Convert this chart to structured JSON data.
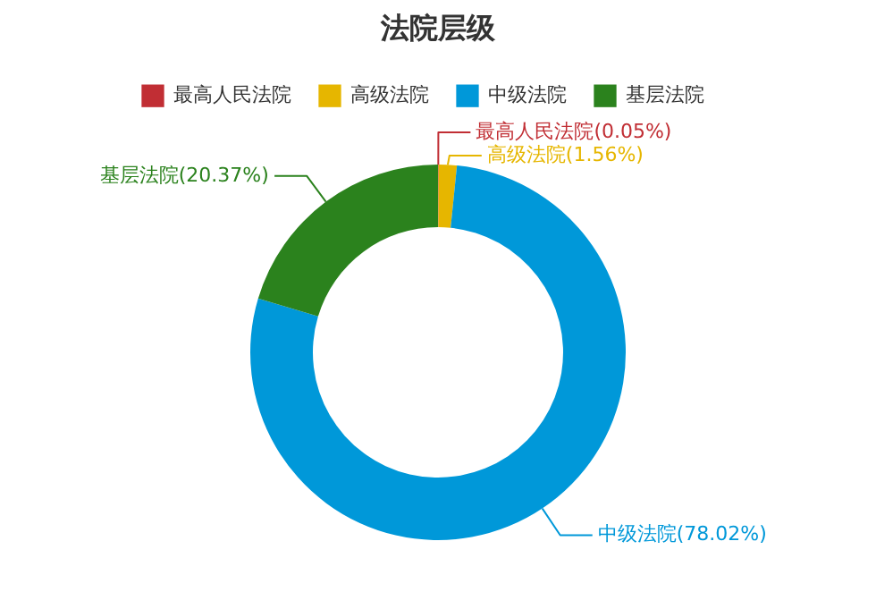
{
  "chart_data": {
    "type": "donut",
    "title": "法院层级",
    "categories": [
      "最高人民法院",
      "高级法院",
      "中级法院",
      "基层法院"
    ],
    "values": [
      0.05,
      1.56,
      78.02,
      20.37
    ],
    "value_labels": [
      "(0.05%)",
      "(1.56%)",
      "(78.02%)",
      "(20.37%)"
    ],
    "colors": [
      "#c12e34",
      "#e6b600",
      "#0098d9",
      "#2b821d"
    ],
    "legend": "top"
  }
}
